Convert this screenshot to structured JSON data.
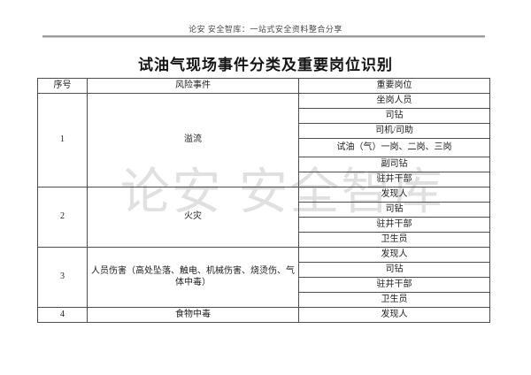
{
  "header": {
    "site_line": "论安 安全智库：一站式安全资料整合分享"
  },
  "title": "试油气现场事件分类及重要岗位识别",
  "watermark": "论安 安全智库",
  "table": {
    "columns": [
      "序号",
      "风险事件",
      "重要岗位"
    ],
    "groups": [
      {
        "no": "1",
        "event": "溢流",
        "positions": [
          "坐岗人员",
          "司钻",
          "司机/司助",
          "试油（气）一岗、二岗、三岗",
          "副司钻",
          "驻井干部"
        ]
      },
      {
        "no": "2",
        "event": "火灾",
        "positions": [
          "发现人",
          "司钻",
          "驻井干部",
          "卫生员"
        ]
      },
      {
        "no": "3",
        "event": "人员伤害（高处坠落、触电、机械伤害、烧烫伤、气体中毒）",
        "positions": [
          "发现人",
          "司钻",
          "驻井干部",
          "卫生员"
        ]
      },
      {
        "no": "4",
        "event": "食物中毒",
        "positions": [
          "发现人"
        ]
      }
    ]
  },
  "colors": {
    "table_border": "#4d4d4d",
    "body_text": "#1c1c1c",
    "header_text": "#4a4a4a",
    "header_rule": "#9a9a9a",
    "watermark": "#c7c7c7",
    "page_background": "#ffffff"
  }
}
